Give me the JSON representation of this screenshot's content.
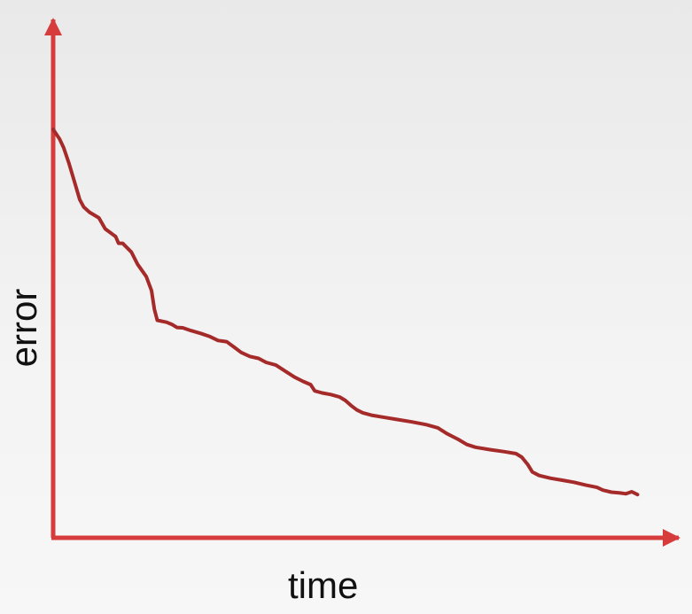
{
  "chart_data": {
    "type": "line",
    "xlabel": "time",
    "ylabel": "error",
    "xlim": [
      0,
      100
    ],
    "ylim": [
      0,
      100
    ],
    "grid": false,
    "legend": "none",
    "colors": {
      "axis": "#d63c3c",
      "series": "#a52a2a"
    },
    "series": [
      {
        "values": [
          [
            0,
            100
          ],
          [
            1.1,
            97.6
          ],
          [
            1.8,
            95.4
          ],
          [
            2.7,
            91.6
          ],
          [
            3.6,
            87.2
          ],
          [
            4.6,
            82.3
          ],
          [
            5.3,
            80.4
          ],
          [
            6.3,
            79.1
          ],
          [
            7.9,
            77.7
          ],
          [
            9.0,
            74.9
          ],
          [
            10.8,
            73.0
          ],
          [
            11.3,
            71.3
          ],
          [
            12.0,
            71.3
          ],
          [
            13.5,
            69.1
          ],
          [
            14.6,
            66.0
          ],
          [
            16.1,
            62.9
          ],
          [
            17.0,
            59.4
          ],
          [
            17.5,
            54.6
          ],
          [
            18.0,
            51.9
          ],
          [
            19.6,
            51.4
          ],
          [
            20.6,
            50.8
          ],
          [
            21.4,
            50.1
          ],
          [
            22.4,
            50.0
          ],
          [
            23.8,
            49.3
          ],
          [
            25.5,
            48.6
          ],
          [
            27.1,
            47.8
          ],
          [
            28.5,
            46.8
          ],
          [
            30.0,
            46.5
          ],
          [
            31.4,
            45.0
          ],
          [
            32.5,
            43.8
          ],
          [
            34.0,
            42.8
          ],
          [
            35.5,
            42.3
          ],
          [
            36.8,
            41.3
          ],
          [
            38.5,
            40.6
          ],
          [
            40.0,
            39.2
          ],
          [
            41.7,
            37.6
          ],
          [
            43.2,
            36.5
          ],
          [
            44.5,
            35.7
          ],
          [
            45.2,
            34.1
          ],
          [
            46.5,
            33.6
          ],
          [
            48.0,
            33.2
          ],
          [
            49.5,
            32.6
          ],
          [
            50.5,
            31.7
          ],
          [
            51.5,
            30.4
          ],
          [
            52.5,
            29.3
          ],
          [
            53.5,
            28.6
          ],
          [
            55.0,
            28.0
          ],
          [
            57.0,
            27.5
          ],
          [
            59.5,
            26.9
          ],
          [
            62.0,
            26.3
          ],
          [
            64.5,
            25.6
          ],
          [
            66.5,
            24.8
          ],
          [
            68.0,
            23.4
          ],
          [
            70.0,
            21.9
          ],
          [
            71.5,
            20.6
          ],
          [
            73.0,
            19.9
          ],
          [
            75.5,
            19.3
          ],
          [
            78.0,
            18.8
          ],
          [
            80.0,
            18.3
          ],
          [
            81.0,
            17.4
          ],
          [
            82.0,
            15.6
          ],
          [
            82.8,
            13.7
          ],
          [
            84.0,
            12.8
          ],
          [
            86.0,
            12.1
          ],
          [
            88.0,
            11.6
          ],
          [
            90.0,
            11.1
          ],
          [
            92.0,
            10.4
          ],
          [
            94.0,
            9.8
          ],
          [
            95.0,
            9.1
          ],
          [
            96.5,
            8.6
          ],
          [
            98.0,
            8.4
          ],
          [
            99.0,
            8.2
          ],
          [
            100.0,
            8.7
          ],
          [
            101.0,
            8.0
          ]
        ]
      }
    ]
  }
}
